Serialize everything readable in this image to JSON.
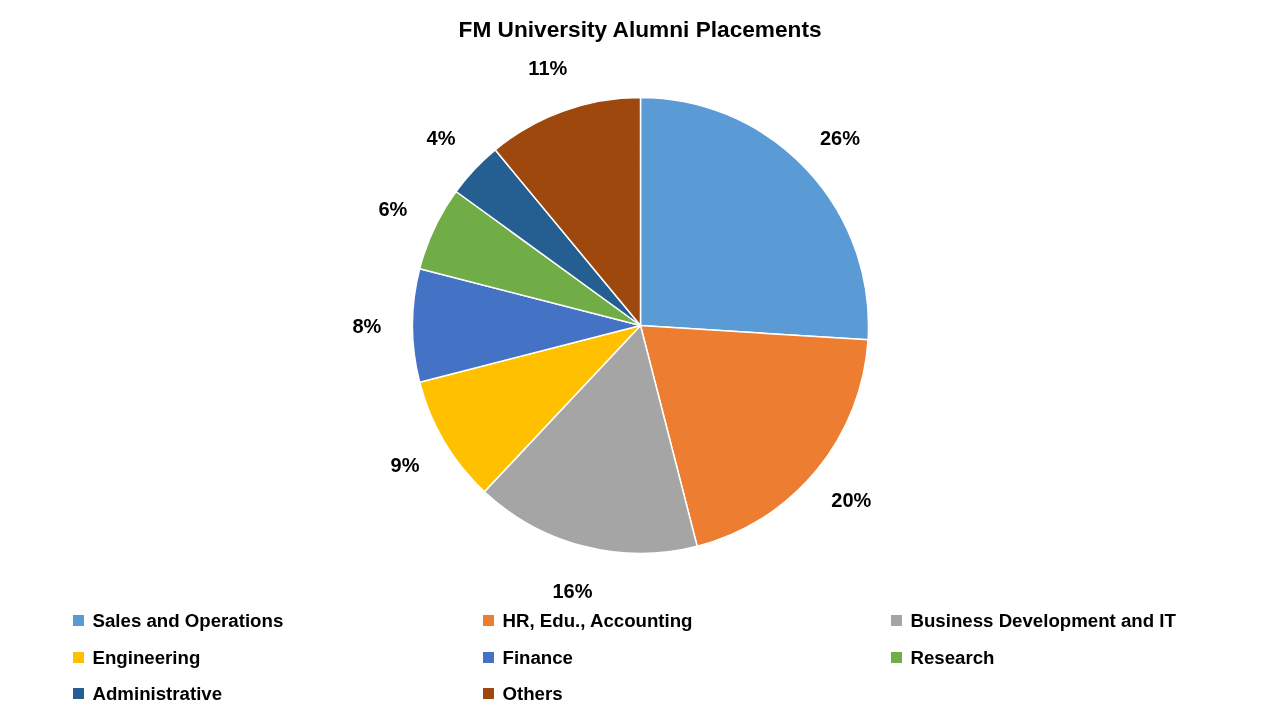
{
  "chart_data": {
    "type": "pie",
    "title": "FM University Alumni Placements",
    "categories": [
      "Sales and Operations",
      "HR, Edu., Accounting",
      "Business Development and IT",
      "Engineering",
      "Finance",
      "Research",
      "Administrative",
      "Others"
    ],
    "values": [
      26,
      20,
      16,
      9,
      8,
      6,
      4,
      11
    ],
    "colors": [
      "#5b9bd5",
      "#ed7d31",
      "#a5a5a5",
      "#ffc000",
      "#4472c4",
      "#70ad47",
      "#255e91",
      "#9e480e"
    ],
    "value_labels": [
      "26%",
      "20%",
      "16%",
      "9%",
      "8%",
      "6%",
      "4%",
      "11%"
    ],
    "legend": "bottom"
  }
}
